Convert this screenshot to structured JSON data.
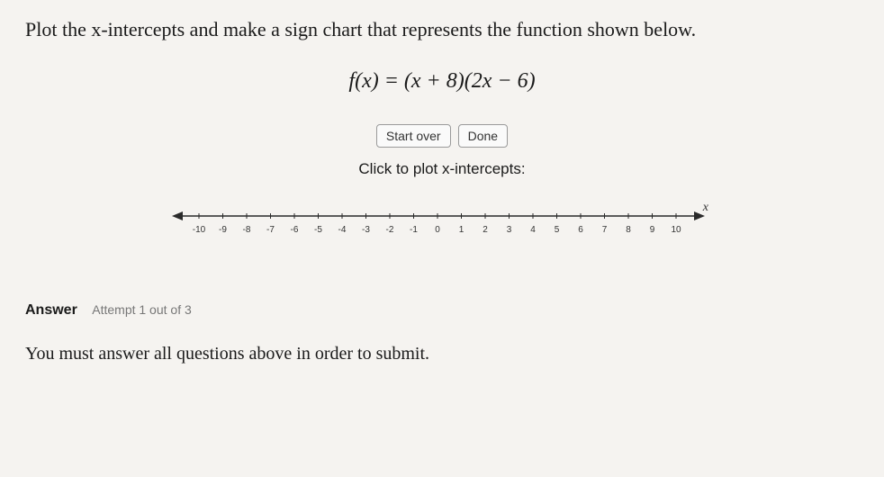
{
  "question": "Plot the x-intercepts and make a sign chart that represents the function shown below.",
  "formula": "f(x) = (x + 8)(2x − 6)",
  "buttons": {
    "start_over": "Start over",
    "done": "Done"
  },
  "instruction": "Click to plot x-intercepts:",
  "numberline": {
    "min": -10,
    "max": 10,
    "step": 1,
    "ticks": [
      "-10",
      "-9",
      "-8",
      "-7",
      "-6",
      "-5",
      "-4",
      "-3",
      "-2",
      "-1",
      "0",
      "1",
      "2",
      "3",
      "4",
      "5",
      "6",
      "7",
      "8",
      "9",
      "10"
    ],
    "axis_label": "x",
    "axis_color": "#2a2a2a",
    "tick_color": "#2a2a2a",
    "tick_height": 6,
    "line_width": 1.5,
    "arrow_size": 8,
    "label_font_size": 10
  },
  "answer": {
    "label": "Answer",
    "attempt": "Attempt 1 out of 3"
  },
  "submit_note": "You must answer all questions above in order to submit.",
  "colors": {
    "background": "#f5f3f0",
    "text": "#1a1a1a",
    "button_border": "#9a9a9a",
    "button_bg": "#fafafa",
    "muted": "#777777"
  }
}
